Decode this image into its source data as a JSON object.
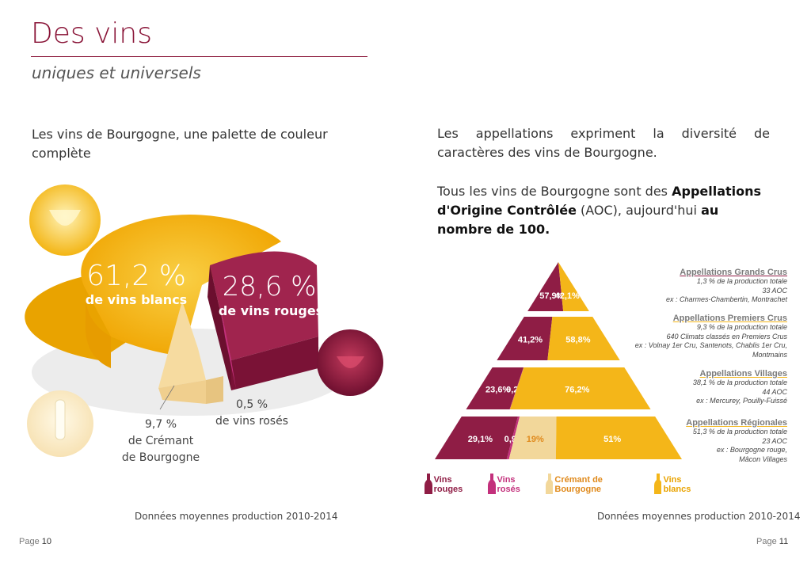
{
  "header": {
    "title": "Des vins",
    "subtitle": "uniques et universels"
  },
  "left": {
    "intro": "Les vins de Bourgogne, une palette de couleur complète",
    "source": "Données moyennes production 2010-2014",
    "page_label": "Page",
    "page_number": "10"
  },
  "right": {
    "intro": "Les appellations expriment la diversité de caractères des vins de Bourgogne.",
    "aoc_text_1": "Tous les vins de Bourgogne sont des ",
    "aoc_bold_1": "Appellations d'Origine Contrôlée",
    "aoc_text_2": " (AOC), aujourd'hui ",
    "aoc_bold_2": "au nombre de 100.",
    "source": "Données moyennes production 2010-2014",
    "page_label": "Page",
    "page_number": "11"
  },
  "colors": {
    "rouge": "#8f1d45",
    "rose": "#c3307c",
    "cremant": "#f2d79a",
    "blanc": "#f4b619",
    "accent": "#8a1538"
  },
  "chart_data": [
    {
      "type": "pie",
      "slices": [
        {
          "name": "vins blancs",
          "value": 61.2,
          "label_value": "61,2 %",
          "label_text": "de vins blancs",
          "color": "#f4b619"
        },
        {
          "name": "vins rouges",
          "value": 28.6,
          "label_value": "28,6 %",
          "label_text": "de vins rouges",
          "color": "#8f1d45"
        },
        {
          "name": "vins rosés",
          "value": 0.5,
          "label_value": "0,5 %",
          "label_text": "de vins rosés",
          "color": "#c3307c"
        },
        {
          "name": "Crémant de Bourgogne",
          "value": 9.7,
          "label_value": "9,7 %",
          "label_text_1": "de Crémant",
          "label_text_2": "de Bourgogne",
          "color": "#f2d79a"
        }
      ]
    },
    {
      "type": "bar",
      "stacked": true,
      "legend_placement": "bottom",
      "legend": [
        "Vins rouges",
        "Vins rosés",
        "Crémant de Bourgogne",
        "Vins blancs"
      ],
      "tiers": [
        {
          "name": "Appellations Grands Crus",
          "lines": [
            "1,3 % de la production totale",
            "33 AOC",
            "ex : Charmes-Chambertin, Montrachet"
          ],
          "values": [
            57.9,
            0,
            0,
            42.1
          ],
          "labels": [
            "57,9%",
            "",
            "",
            "42,1%"
          ]
        },
        {
          "name": "Appellations Premiers Crus",
          "lines": [
            "9,3 % de la production totale",
            "640 Climats classés en Premiers Crus",
            "ex : Volnay 1er Cru, Santenots, Chablis 1er Cru,",
            "Montmains"
          ],
          "values": [
            41.2,
            0,
            0,
            58.8
          ],
          "labels": [
            "41,2%",
            "",
            "",
            "58,8%"
          ]
        },
        {
          "name": "Appellations Villages",
          "lines": [
            "38,1 % de la production totale",
            "44 AOC",
            "ex : Mercurey, Pouilly-Fuissé"
          ],
          "values": [
            23.6,
            0.2,
            0,
            76.2
          ],
          "labels": [
            "23,6%",
            "0,2%",
            "",
            "76,2%"
          ]
        },
        {
          "name": "Appellations Régionales",
          "lines": [
            "51,3 % de la production totale",
            "23 AOC",
            "ex : Bourgogne rouge,",
            "Mâcon Villages"
          ],
          "values": [
            29.1,
            0.9,
            19,
            51
          ],
          "labels": [
            "29,1%",
            "0,9%",
            "19%",
            "51%"
          ]
        }
      ]
    }
  ]
}
